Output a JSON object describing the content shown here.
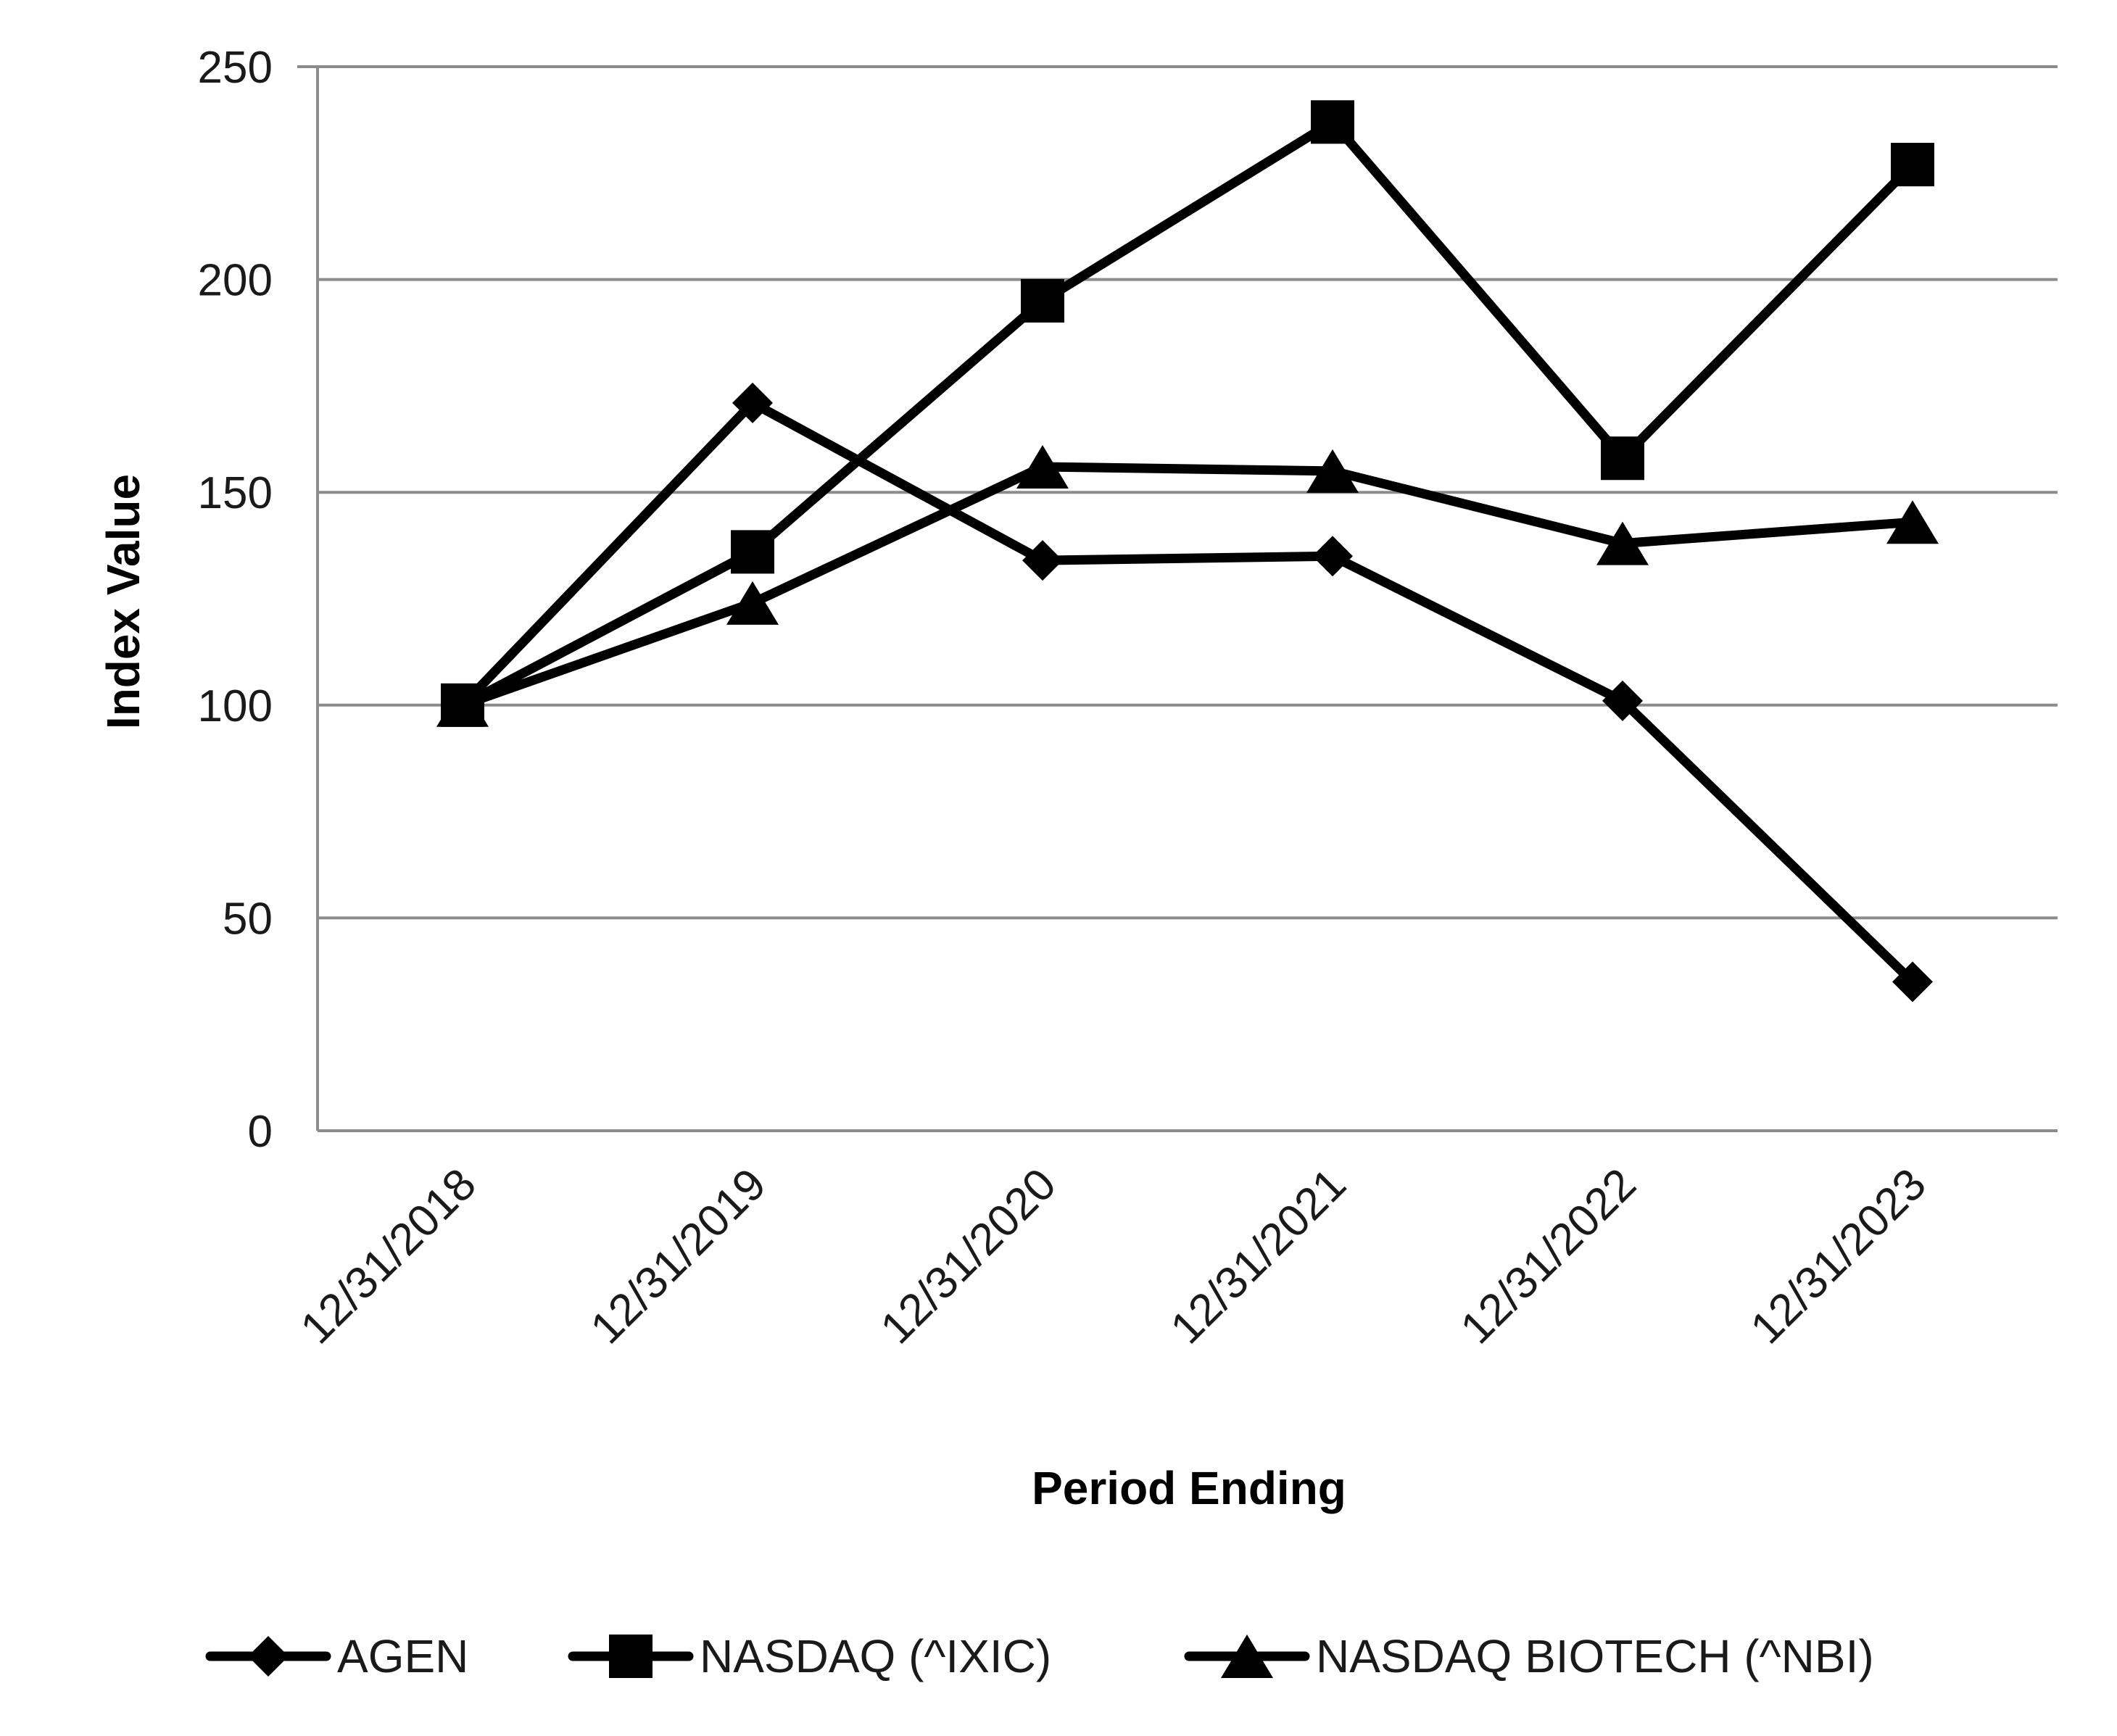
{
  "chart_data": {
    "type": "line",
    "xlabel": "Period Ending",
    "ylabel": "Index Value",
    "categories": [
      "12/31/2018",
      "12/31/2019",
      "12/31/2020",
      "12/31/2021",
      "12/31/2022",
      "12/31/2023"
    ],
    "ylim": [
      0,
      250
    ],
    "yticks": [
      0,
      50,
      100,
      150,
      200,
      250
    ],
    "grid": true,
    "legend_position": "bottom",
    "series": [
      {
        "name": "AGEN",
        "marker": "diamond",
        "color": "#000000",
        "values": [
          100,
          171,
          134,
          135,
          101,
          35
        ]
      },
      {
        "name": "NASDAQ (^IXIC)",
        "marker": "square",
        "color": "#000000",
        "values": [
          100,
          136,
          195,
          237,
          158,
          227
        ]
      },
      {
        "name": "NASDAQ BIOTECH (^NBI)",
        "marker": "triangle",
        "color": "#000000",
        "values": [
          100,
          124,
          156,
          155,
          138,
          143
        ]
      }
    ]
  },
  "colors": {
    "grid": "#8c8c8c",
    "axis": "#8c8c8c",
    "series": "#000000"
  }
}
